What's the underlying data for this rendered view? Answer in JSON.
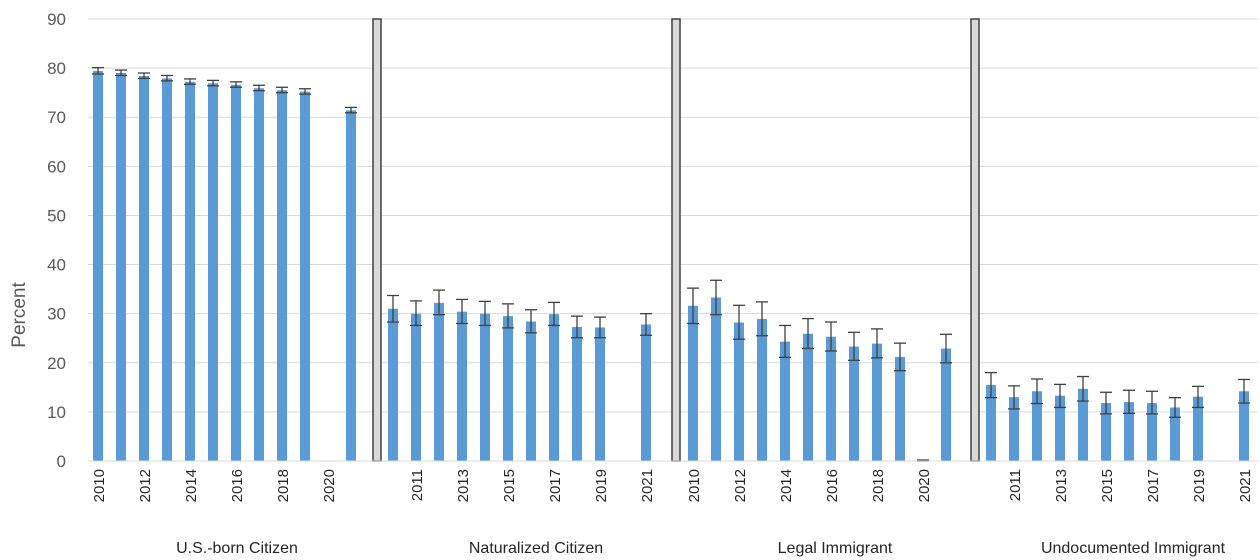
{
  "chart_data": {
    "type": "bar",
    "ylabel": "Percent",
    "xlabel": "",
    "title": "",
    "ylim": [
      0,
      90
    ],
    "yticks": [
      0,
      10,
      20,
      30,
      40,
      50,
      60,
      70,
      80,
      90
    ],
    "grid": true,
    "bar_color": "#5B9BD5",
    "separator_color": "#D9D9D9",
    "years": [
      "2010",
      "2011",
      "2012",
      "2013",
      "2014",
      "2015",
      "2016",
      "2017",
      "2018",
      "2019",
      "2020",
      "2021"
    ],
    "groups": [
      {
        "name": "U.S.-born Citizen",
        "shown_year_labels": [
          "2010",
          "2012",
          "2014",
          "2016",
          "2018",
          "2020"
        ],
        "values": [
          79.4,
          79.0,
          78.4,
          77.9,
          77.2,
          76.9,
          76.6,
          75.9,
          75.5,
          75.2,
          null,
          71.4
        ],
        "err_low": [
          78.8,
          78.5,
          77.9,
          77.4,
          76.7,
          76.4,
          76.1,
          75.4,
          75.0,
          74.7,
          null,
          70.9
        ],
        "err_high": [
          80.1,
          79.6,
          79.0,
          78.5,
          77.8,
          77.5,
          77.2,
          76.5,
          76.1,
          75.8,
          null,
          72.0
        ]
      },
      {
        "name": "Naturalized Citizen",
        "shown_year_labels": [
          "2011",
          "2013",
          "2015",
          "2017",
          "2019",
          "2021"
        ],
        "values": [
          31.0,
          30.0,
          32.2,
          30.4,
          30.0,
          29.5,
          28.4,
          29.9,
          27.3,
          27.2,
          null,
          27.8
        ],
        "err_low": [
          28.3,
          27.6,
          29.8,
          28.0,
          27.6,
          27.1,
          26.1,
          27.6,
          25.1,
          25.1,
          null,
          25.6
        ],
        "err_high": [
          33.7,
          32.6,
          34.8,
          32.9,
          32.5,
          32.0,
          30.8,
          32.3,
          29.5,
          29.3,
          null,
          30.0
        ]
      },
      {
        "name": "Legal Immigrant",
        "shown_year_labels": [
          "2010",
          "2012",
          "2014",
          "2016",
          "2018",
          "2020"
        ],
        "values": [
          31.6,
          33.3,
          28.2,
          28.9,
          24.3,
          25.9,
          25.3,
          23.3,
          23.9,
          21.2,
          0.1,
          22.9
        ],
        "err_low": [
          28.0,
          29.8,
          24.8,
          25.5,
          21.1,
          22.9,
          22.4,
          20.5,
          21.0,
          18.4,
          0.0,
          20.0
        ],
        "err_high": [
          35.2,
          36.8,
          31.7,
          32.4,
          27.6,
          29.0,
          28.3,
          26.2,
          26.9,
          24.0,
          0.2,
          25.8
        ]
      },
      {
        "name": "Undocumented Immigrant",
        "shown_year_labels": [
          "2011",
          "2013",
          "2015",
          "2017",
          "2019",
          "2021"
        ],
        "values": [
          15.5,
          13.0,
          14.2,
          13.3,
          14.7,
          11.8,
          12.0,
          11.8,
          10.9,
          13.1,
          null,
          14.2
        ],
        "err_low": [
          12.9,
          10.6,
          11.7,
          10.9,
          12.2,
          9.6,
          9.7,
          9.6,
          8.9,
          10.9,
          null,
          11.8
        ],
        "err_high": [
          18.0,
          15.3,
          16.7,
          15.6,
          17.2,
          14.0,
          14.4,
          14.2,
          12.9,
          15.2,
          null,
          16.6
        ]
      }
    ]
  }
}
